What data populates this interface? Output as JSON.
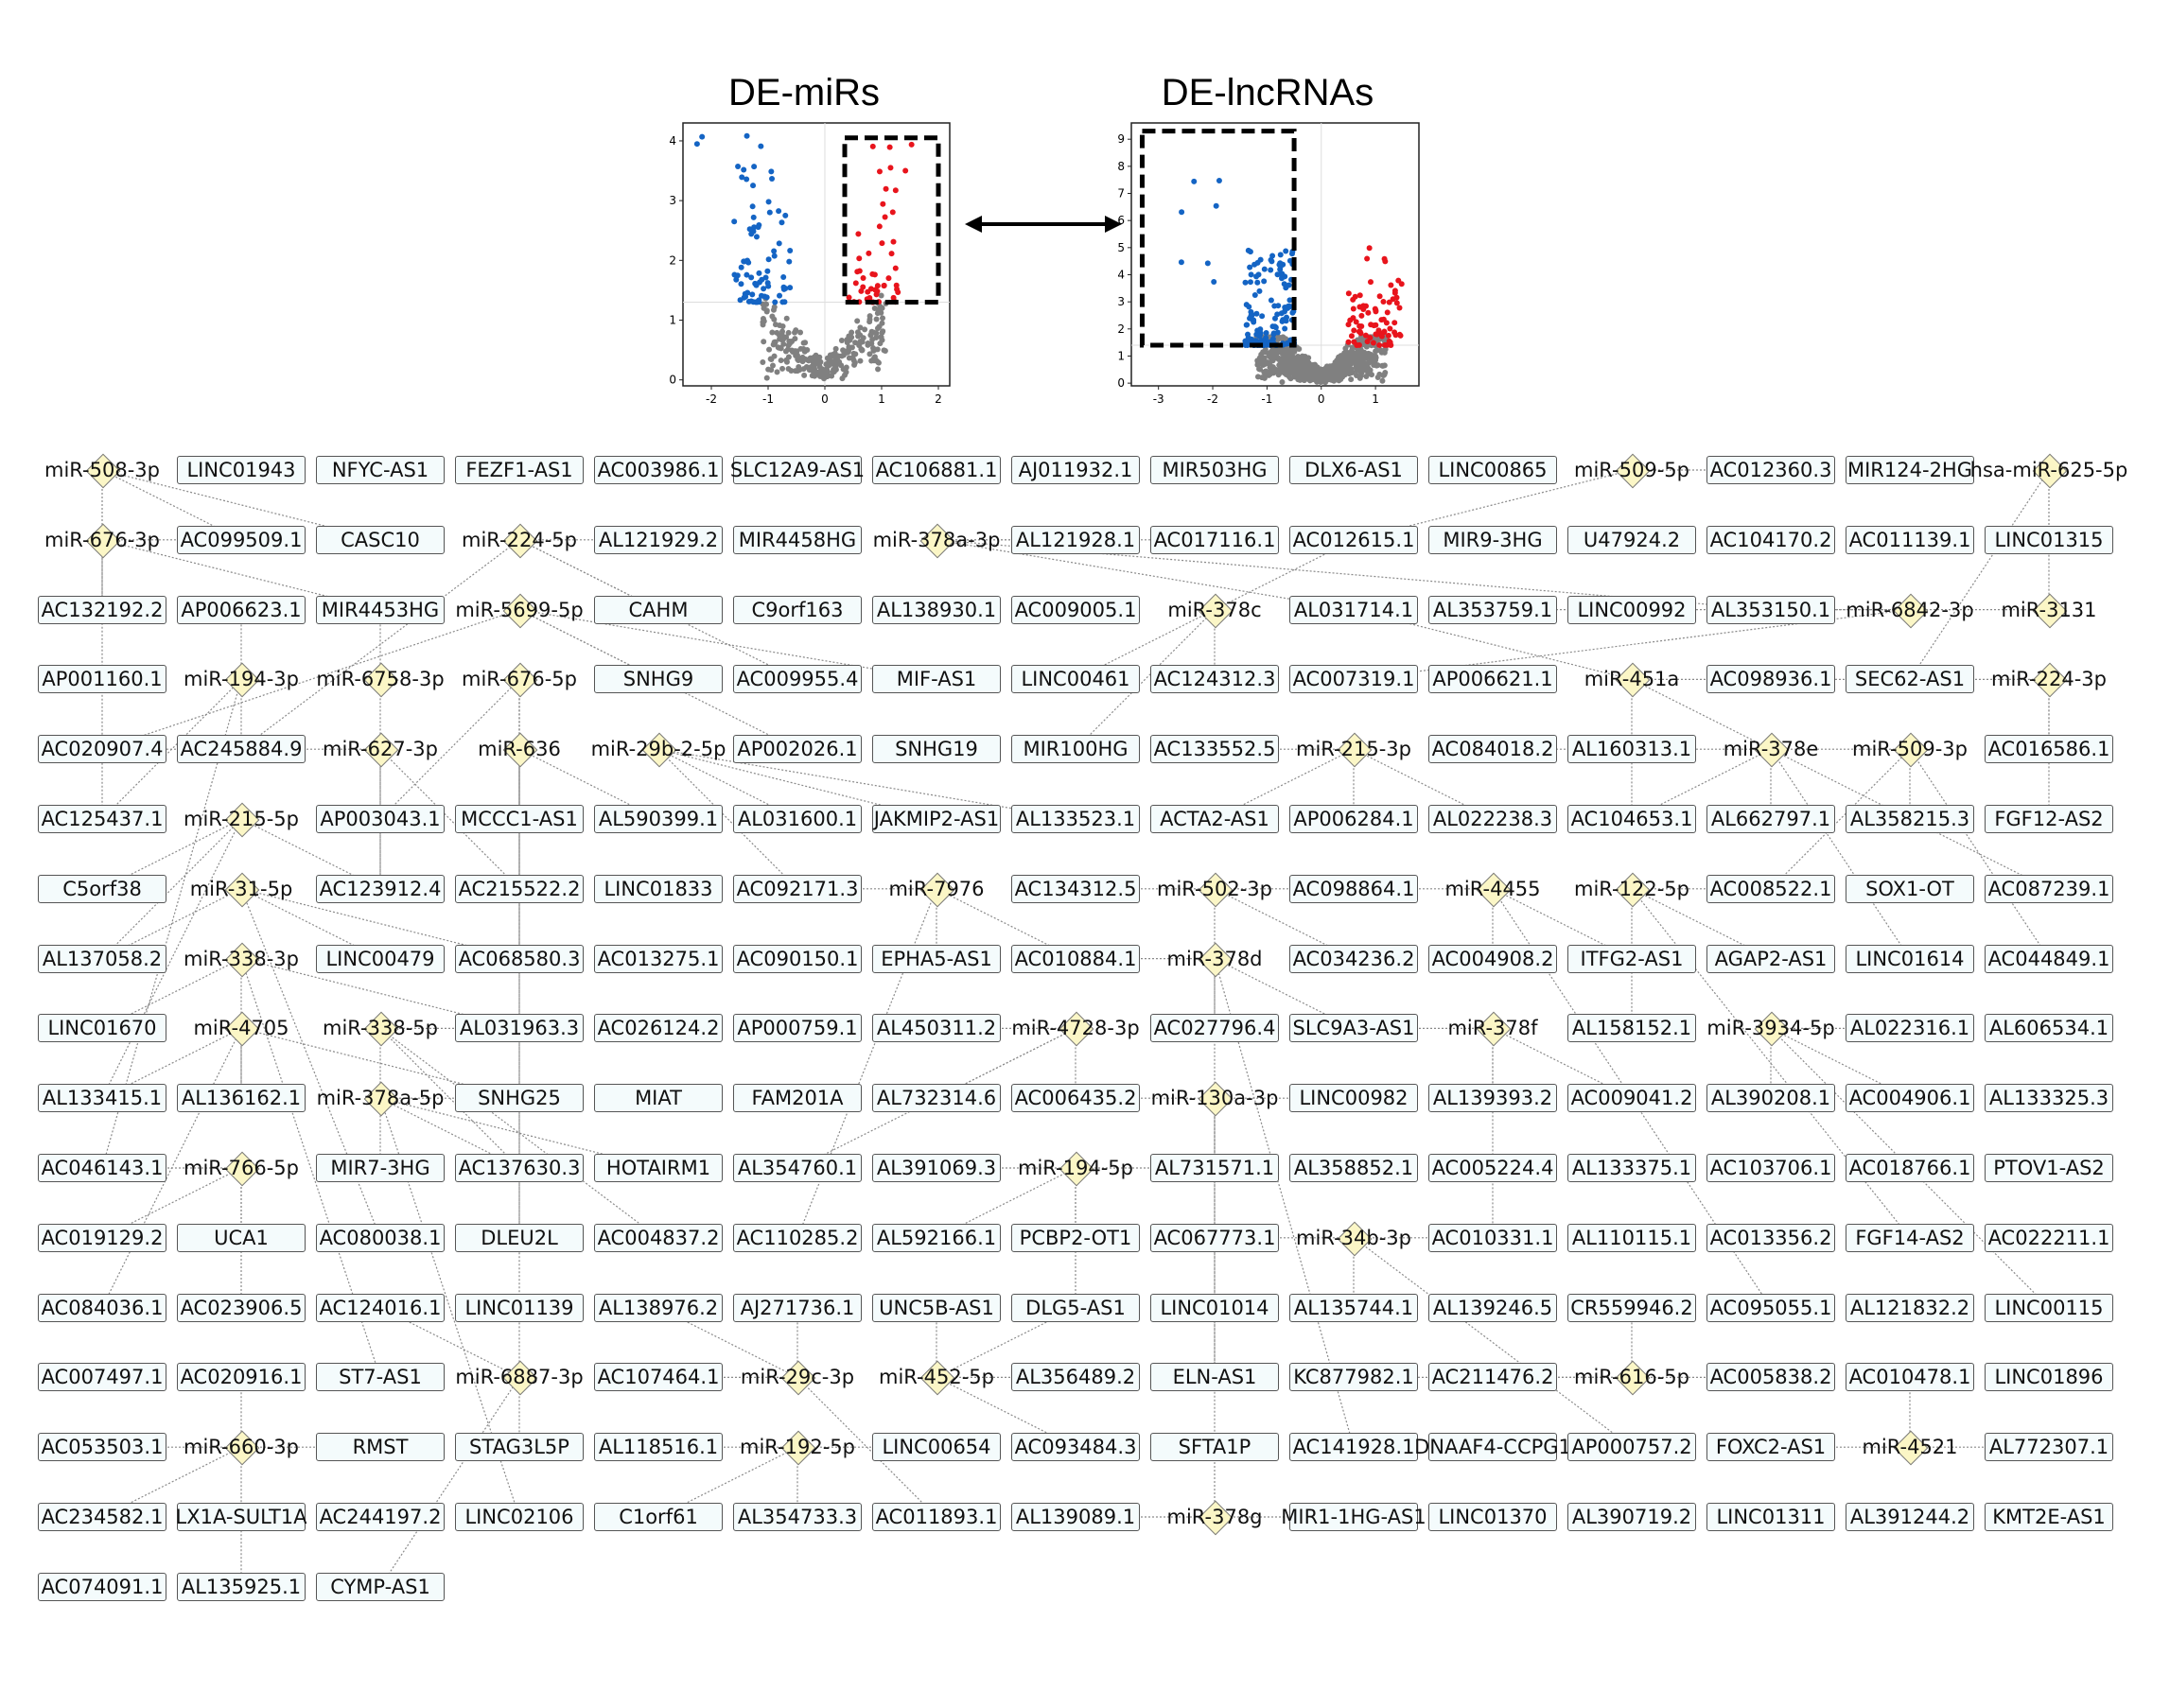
{
  "plots": [
    {
      "id": "mir",
      "title": "DE-miRs",
      "xticks": [
        "-2",
        "-1",
        "0",
        "1",
        "2"
      ],
      "yticks": [
        "0",
        "1",
        "2",
        "3",
        "4"
      ],
      "box_region": "right"
    },
    {
      "id": "lnc",
      "title": "DE-lncRNAs",
      "xticks": [
        "-3",
        "-2",
        "-1",
        "0",
        "1"
      ],
      "yticks": [
        "0",
        "1",
        "2",
        "3",
        "4",
        "5",
        "6",
        "7",
        "8",
        "9"
      ],
      "box_region": "left"
    }
  ],
  "colors": {
    "up": "#e8141c",
    "down": "#1464c4",
    "ns": "#808080",
    "mir_fill": "#fbf6c6",
    "lnc_fill": "#f4fbfc"
  },
  "grid_rows": [
    [
      "miR-508-3p",
      "LINC01943",
      "NFYC-AS1",
      "FEZF1-AS1",
      "AC003986.1",
      "SLC12A9-AS1",
      "AC106881.1",
      "AJ011932.1",
      "MIR503HG",
      "DLX6-AS1",
      "LINC00865",
      "miR-509-5p",
      "AC012360.3",
      "MIR124-2HG",
      "hsa-miR-625-5p"
    ],
    [
      "miR-676-3p",
      "AC099509.1",
      "CASC10",
      "miR-224-5p",
      "AL121929.2",
      "MIR4458HG",
      "miR-378a-3p",
      "AL121928.1",
      "AC017116.1",
      "AC012615.1",
      "MIR9-3HG",
      "U47924.2",
      "AC104170.2",
      "AC011139.1",
      "LINC01315"
    ],
    [
      "AC132192.2",
      "AP006623.1",
      "MIR4453HG",
      "miR-5699-5p",
      "CAHM",
      "C9orf163",
      "AL138930.1",
      "AC009005.1",
      "miR-378c",
      "AL031714.1",
      "AL353759.1",
      "LINC00992",
      "AL353150.1",
      "miR-6842-3p",
      "miR-3131"
    ],
    [
      "AP001160.1",
      "miR-194-3p",
      "miR-6758-3p",
      "miR-676-5p",
      "SNHG9",
      "AC009955.4",
      "MIF-AS1",
      "LINC00461",
      "AC124312.3",
      "AC007319.1",
      "AP006621.1",
      "miR-451a",
      "AC098936.1",
      "SEC62-AS1",
      "miR-224-3p"
    ],
    [
      "AC020907.4",
      "AC245884.9",
      "miR-627-3p",
      "miR-636",
      "miR-29b-2-5p",
      "AP002026.1",
      "SNHG19",
      "MIR100HG",
      "AC133552.5",
      "miR-215-3p",
      "AC084018.2",
      "AL160313.1",
      "miR-378e",
      "miR-509-3p",
      "AC016586.1"
    ],
    [
      "AC125437.1",
      "miR-215-5p",
      "AP003043.1",
      "MCCC1-AS1",
      "AL590399.1",
      "AL031600.1",
      "JAKMIP2-AS1",
      "AL133523.1",
      "ACTA2-AS1",
      "AP006284.1",
      "AL022238.3",
      "AC104653.1",
      "AL662797.1",
      "AL358215.3",
      "FGF12-AS2"
    ],
    [
      "C5orf38",
      "miR-31-5p",
      "AC123912.4",
      "AC215522.2",
      "LINC01833",
      "AC092171.3",
      "miR-7976",
      "AC134312.5",
      "miR-502-3p",
      "AC098864.1",
      "miR-4455",
      "miR-122-5p",
      "AC008522.1",
      "SOX1-OT",
      "AC087239.1"
    ],
    [
      "AL137058.2",
      "miR-338-3p",
      "LINC00479",
      "AC068580.3",
      "AC013275.1",
      "AC090150.1",
      "EPHA5-AS1",
      "AC010884.1",
      "miR-378d",
      "AC034236.2",
      "AC004908.2",
      "ITFG2-AS1",
      "AGAP2-AS1",
      "LINC01614",
      "AC044849.1"
    ],
    [
      "LINC01670",
      "miR-4705",
      "miR-338-5p",
      "AL031963.3",
      "AC026124.2",
      "AP000759.1",
      "AL450311.2",
      "miR-4728-3p",
      "AC027796.4",
      "SLC9A3-AS1",
      "miR-378f",
      "AL158152.1",
      "miR-3934-5p",
      "AL022316.1",
      "AL606534.1"
    ],
    [
      "AL133415.1",
      "AL136162.1",
      "miR-378a-5p",
      "SNHG25",
      "MIAT",
      "FAM201A",
      "AL732314.6",
      "AC006435.2",
      "miR-130a-3p",
      "LINC00982",
      "AL139393.2",
      "AC009041.2",
      "AL390208.1",
      "AC004906.1",
      "AL133325.3"
    ],
    [
      "AC046143.1",
      "miR-766-5p",
      "MIR7-3HG",
      "AC137630.3",
      "HOTAIRM1",
      "AL354760.1",
      "AL391069.3",
      "miR-194-5p",
      "AL731571.1",
      "AL358852.1",
      "AC005224.4",
      "AL133375.1",
      "AC103706.1",
      "AC018766.1",
      "PTOV1-AS2"
    ],
    [
      "AC019129.2",
      "UCA1",
      "AC080038.1",
      "DLEU2L",
      "AC004837.2",
      "AC110285.2",
      "AL592166.1",
      "PCBP2-OT1",
      "AC067773.1",
      "miR-34b-3p",
      "AC010331.1",
      "AL110115.1",
      "AC013356.2",
      "FGF14-AS2",
      "AC022211.1"
    ],
    [
      "AC084036.1",
      "AC023906.5",
      "AC124016.1",
      "LINC01139",
      "AL138976.2",
      "AJ271736.1",
      "UNC5B-AS1",
      "DLG5-AS1",
      "LINC01014",
      "AL135744.1",
      "AL139246.5",
      "CR559946.2",
      "AC095055.1",
      "AL121832.2",
      "LINC00115"
    ],
    [
      "AC007497.1",
      "AC020916.1",
      "ST7-AS1",
      "miR-6887-3p",
      "AC107464.1",
      "miR-29c-3p",
      "miR-452-5p",
      "AL356489.2",
      "ELN-AS1",
      "KC877982.1",
      "AC211476.2",
      "miR-616-5p",
      "AC005838.2",
      "AC010478.1",
      "LINC01896"
    ],
    [
      "AC053503.1",
      "miR-660-3p",
      "RMST",
      "STAG3L5P",
      "AL118516.1",
      "miR-192-5p",
      "LINC00654",
      "AC093484.3",
      "SFTA1P",
      "AC141928.1",
      "DNAAF4-CCPG1",
      "AP000757.2",
      "FOXC2-AS1",
      "miR-4521",
      "AL772307.1"
    ],
    [
      "AC234582.1",
      "LX1A-SULT1A",
      "AC244197.2",
      "LINC02106",
      "C1orf61",
      "AL354733.3",
      "AC011893.1",
      "AL139089.1",
      "miR-378g",
      "MIR1-1HG-AS1",
      "LINC01370",
      "AL390719.2",
      "LINC01311",
      "AL391244.2",
      "KMT2E-AS1"
    ],
    [
      "AC074091.1",
      "AL135925.1",
      "CYMP-AS1"
    ]
  ],
  "edges": [
    [
      "miR-508-3p",
      "AC132192.2"
    ],
    [
      "miR-508-3p",
      "AC099509.1"
    ],
    [
      "miR-508-3p",
      "CASC10"
    ],
    [
      "miR-676-3p",
      "AC099509.1"
    ],
    [
      "miR-676-3p",
      "MIR4453HG"
    ],
    [
      "miR-676-3p",
      "AC125437.1"
    ],
    [
      "miR-224-5p",
      "AL121929.2"
    ],
    [
      "miR-224-5p",
      "CAHM"
    ],
    [
      "miR-224-5p",
      "AC009955.4"
    ],
    [
      "miR-224-5p",
      "AC245884.9"
    ],
    [
      "miR-5699-5p",
      "SNHG9"
    ],
    [
      "miR-5699-5p",
      "MIF-AS1"
    ],
    [
      "miR-5699-5p",
      "AC020907.4"
    ],
    [
      "miR-378a-3p",
      "AL121928.1"
    ],
    [
      "miR-378a-3p",
      "AC017116.1"
    ],
    [
      "miR-378a-3p",
      "AL031714.1"
    ],
    [
      "miR-378a-3p",
      "AL353150.1"
    ],
    [
      "miR-378c",
      "AC012615.1"
    ],
    [
      "miR-378c",
      "LINC00461"
    ],
    [
      "miR-378c",
      "AC124312.3"
    ],
    [
      "miR-509-5p",
      "AC012360.3"
    ],
    [
      "miR-509-5p",
      "AC012615.1"
    ],
    [
      "hsa-miR-625-5p",
      "LINC01315"
    ],
    [
      "hsa-miR-625-5p",
      "SEC62-AS1"
    ],
    [
      "miR-6842-3p",
      "AL353759.1"
    ],
    [
      "miR-6842-3p",
      "AC007319.1"
    ],
    [
      "miR-194-3p",
      "AP006623.1"
    ],
    [
      "miR-194-3p",
      "AC245884.9"
    ],
    [
      "miR-194-3p",
      "AC125437.1"
    ],
    [
      "miR-6758-3p",
      "MIR4453HG"
    ],
    [
      "miR-6758-3p",
      "AC123912.4"
    ],
    [
      "miR-676-5p",
      "AC215522.2"
    ],
    [
      "miR-676-5p",
      "MCCC1-AS1"
    ],
    [
      "miR-676-5p",
      "AP003043.1"
    ],
    [
      "miR-451a",
      "AC098936.1"
    ],
    [
      "miR-451a",
      "AC104653.1"
    ],
    [
      "miR-451a",
      "AL031714.1"
    ],
    [
      "miR-224-3p",
      "AC016586.1"
    ],
    [
      "miR-224-3p",
      "AC098936.1"
    ],
    [
      "miR-627-3p",
      "AC123912.4"
    ],
    [
      "miR-627-3p",
      "AC020907.4"
    ],
    [
      "miR-636",
      "MCCC1-AS1"
    ],
    [
      "miR-636",
      "AC068580.3"
    ],
    [
      "miR-636",
      "AL590399.1"
    ],
    [
      "miR-29b-2-5p",
      "AL031600.1"
    ],
    [
      "miR-29b-2-5p",
      "JAKMIP2-AS1"
    ],
    [
      "miR-29b-2-5p",
      "AL133523.1"
    ],
    [
      "miR-215-3p",
      "ACTA2-AS1"
    ],
    [
      "miR-215-3p",
      "AP006284.1"
    ],
    [
      "miR-215-3p",
      "AL022238.3"
    ],
    [
      "miR-378e",
      "AL662797.1"
    ],
    [
      "miR-378e",
      "AC104653.1"
    ],
    [
      "miR-509-3p",
      "AL358215.3"
    ],
    [
      "miR-509-3p",
      "AC008522.1"
    ],
    [
      "miR-509-3p",
      "AC084018.2"
    ],
    [
      "miR-215-5p",
      "C5orf38"
    ],
    [
      "miR-215-5p",
      "AL137058.2"
    ],
    [
      "miR-215-5p",
      "AC123912.4"
    ],
    [
      "miR-31-5p",
      "AL137058.2"
    ],
    [
      "miR-31-5p",
      "LINC00479"
    ],
    [
      "miR-31-5p",
      "AC068580.3"
    ],
    [
      "miR-7976",
      "AC092171.3"
    ],
    [
      "miR-7976",
      "EPHA5-AS1"
    ],
    [
      "miR-7976",
      "AC010884.1"
    ],
    [
      "miR-502-3p",
      "AC134312.5"
    ],
    [
      "miR-502-3p",
      "AC098864.1"
    ],
    [
      "miR-502-3p",
      "AC034236.2"
    ],
    [
      "miR-4455",
      "AC004908.2"
    ],
    [
      "miR-4455",
      "ITFG2-AS1"
    ],
    [
      "miR-4455",
      "AC098864.1"
    ],
    [
      "miR-122-5p",
      "AGAP2-AS1"
    ],
    [
      "miR-122-5p",
      "AC008522.1"
    ],
    [
      "miR-122-5p",
      "AL158152.1"
    ],
    [
      "miR-338-3p",
      "LINC01670"
    ],
    [
      "miR-338-3p",
      "AL031963.3"
    ],
    [
      "miR-338-3p",
      "AL136162.1"
    ],
    [
      "miR-378d",
      "AC010884.1"
    ],
    [
      "miR-378d",
      "AC027796.4"
    ],
    [
      "miR-378d",
      "SLC9A3-AS1"
    ],
    [
      "miR-4705",
      "AL133415.1"
    ],
    [
      "miR-4705",
      "AL136162.1"
    ],
    [
      "miR-4705",
      "SNHG25"
    ],
    [
      "miR-338-5p",
      "AL031963.3"
    ],
    [
      "miR-338-5p",
      "MIR7-3HG"
    ],
    [
      "miR-338-5p",
      "AC137630.3"
    ],
    [
      "miR-4728-3p",
      "AL450311.2"
    ],
    [
      "miR-4728-3p",
      "AC006435.2"
    ],
    [
      "miR-4728-3p",
      "AL732314.6"
    ],
    [
      "miR-378f",
      "SLC9A3-AS1"
    ],
    [
      "miR-378f",
      "AL139393.2"
    ],
    [
      "miR-378f",
      "AC009041.2"
    ],
    [
      "miR-3934-5p",
      "AL022316.1"
    ],
    [
      "miR-3934-5p",
      "AL390208.1"
    ],
    [
      "miR-3934-5p",
      "AC004906.1"
    ],
    [
      "miR-378a-5p",
      "SNHG25"
    ],
    [
      "miR-378a-5p",
      "AC137630.3"
    ],
    [
      "miR-378a-5p",
      "HOTAIRM1"
    ],
    [
      "miR-130a-3p",
      "LINC00982"
    ],
    [
      "miR-130a-3p",
      "AL731571.1"
    ],
    [
      "miR-130a-3p",
      "AC006435.2"
    ],
    [
      "miR-766-5p",
      "AC046143.1"
    ],
    [
      "miR-766-5p",
      "UCA1"
    ],
    [
      "miR-766-5p",
      "AC019129.2"
    ],
    [
      "miR-194-5p",
      "AL391069.3"
    ],
    [
      "miR-194-5p",
      "AL592166.1"
    ],
    [
      "miR-194-5p",
      "PCBP2-OT1"
    ],
    [
      "miR-194-5p",
      "AL731571.1"
    ],
    [
      "miR-34b-3p",
      "AC067773.1"
    ],
    [
      "miR-34b-3p",
      "AC010331.1"
    ],
    [
      "miR-34b-3p",
      "AL135744.1"
    ],
    [
      "miR-6887-3p",
      "LINC01139"
    ],
    [
      "miR-6887-3p",
      "AC124016.1"
    ],
    [
      "miR-6887-3p",
      "STAG3L5P"
    ],
    [
      "miR-29c-3p",
      "AJ271736.1"
    ],
    [
      "miR-29c-3p",
      "AL138976.2"
    ],
    [
      "miR-29c-3p",
      "AC107464.1"
    ],
    [
      "miR-452-5p",
      "UNC5B-AS1"
    ],
    [
      "miR-452-5p",
      "AL356489.2"
    ],
    [
      "miR-452-5p",
      "DLG5-AS1"
    ],
    [
      "miR-616-5p",
      "CR559946.2"
    ],
    [
      "miR-616-5p",
      "AC005838.2"
    ],
    [
      "miR-616-5p",
      "AC211476.2"
    ],
    [
      "miR-660-3p",
      "AC053503.1"
    ],
    [
      "miR-660-3p",
      "AC020916.1"
    ],
    [
      "miR-660-3p",
      "AC234582.1"
    ],
    [
      "miR-660-3p",
      "RMST"
    ],
    [
      "miR-192-5p",
      "AL118516.1"
    ],
    [
      "miR-192-5p",
      "LINC00654"
    ],
    [
      "miR-192-5p",
      "AL354733.3"
    ],
    [
      "miR-4521",
      "FOXC2-AS1"
    ],
    [
      "miR-4521",
      "AL772307.1"
    ],
    [
      "miR-4521",
      "AC010478.1"
    ],
    [
      "miR-378g",
      "SFTA1P"
    ],
    [
      "miR-378g",
      "AL139089.1"
    ],
    [
      "miR-378g",
      "MIR1-1HG-AS1"
    ],
    [
      "miR-3131",
      "LINC01315"
    ],
    [
      "miR-3131",
      "AL353150.1"
    ],
    [
      "miR-636",
      "LINC01139"
    ],
    [
      "miR-215-5p",
      "AL133415.1"
    ],
    [
      "miR-338-3p",
      "ST7-AS1"
    ],
    [
      "miR-4705",
      "AC084036.1"
    ],
    [
      "miR-766-5p",
      "AC023906.5"
    ],
    [
      "miR-378a-5p",
      "LINC02106"
    ],
    [
      "miR-6887-3p",
      "CYMP-AS1"
    ],
    [
      "miR-502-3p",
      "SFTA1P"
    ],
    [
      "miR-130a-3p",
      "ELN-AS1"
    ],
    [
      "miR-34b-3p",
      "AP000757.2"
    ],
    [
      "miR-616-5p",
      "KC877982.1"
    ],
    [
      "miR-122-5p",
      "FGF14-AS2"
    ],
    [
      "miR-3934-5p",
      "LINC00115"
    ],
    [
      "miR-4455",
      "AC095055.1"
    ],
    [
      "miR-378d",
      "AC141928.1"
    ],
    [
      "miR-194-5p",
      "DLG5-AS1"
    ],
    [
      "miR-29c-3p",
      "AC011893.1"
    ],
    [
      "miR-452-5p",
      "AC093484.3"
    ],
    [
      "miR-7976",
      "AC110285.2"
    ],
    [
      "miR-378f",
      "AC010331.1"
    ],
    [
      "miR-224-3p",
      "FGF12-AS2"
    ],
    [
      "miR-509-3p",
      "AC044849.1"
    ],
    [
      "miR-378e",
      "LINC01614"
    ],
    [
      "miR-4728-3p",
      "AL354760.1"
    ],
    [
      "miR-29b-2-5p",
      "AC092171.3"
    ],
    [
      "miR-627-3p",
      "AC215522.2"
    ],
    [
      "miR-194-3p",
      "AC046143.1"
    ],
    [
      "miR-676-5p",
      "DLEU2L"
    ],
    [
      "miR-5699-5p",
      "AP002026.1"
    ],
    [
      "miR-378c",
      "MIR100HG"
    ],
    [
      "miR-451a",
      "AC087239.1"
    ],
    [
      "miR-215-3p",
      "AC133552.5"
    ],
    [
      "miR-31-5p",
      "AC080038.1"
    ],
    [
      "miR-338-5p",
      "AC004837.2"
    ],
    [
      "miR-660-3p",
      "AL135925.1"
    ],
    [
      "miR-192-5p",
      "C1orf61"
    ]
  ]
}
